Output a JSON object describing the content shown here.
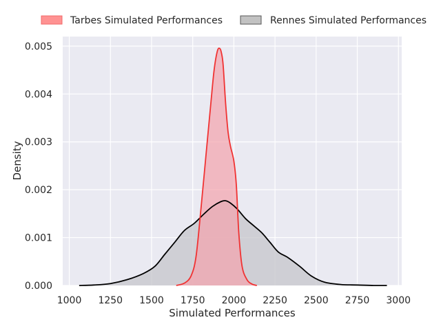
{
  "chart_data": {
    "type": "area",
    "title": "",
    "xlabel": "Simulated Performances",
    "ylabel": "Density",
    "xlim": [
      960,
      3020
    ],
    "ylim": [
      0,
      0.0052
    ],
    "xticks": [
      1000,
      1250,
      1500,
      1750,
      2000,
      2250,
      2500,
      2750,
      3000
    ],
    "yticks": [
      0.0,
      0.001,
      0.002,
      0.003,
      0.004,
      0.005
    ],
    "ytick_labels": [
      "0.000",
      "0.001",
      "0.002",
      "0.003",
      "0.004",
      "0.005"
    ],
    "grid": true,
    "legend_placement": "top",
    "series": [
      {
        "name": "Tarbes Simulated Performances",
        "line_color": "#f03232",
        "fill_color": "#f4a3ad",
        "x": [
          1650,
          1700,
          1740,
          1770,
          1800,
          1830,
          1860,
          1880,
          1900,
          1915,
          1925,
          1935,
          1950,
          1965,
          1980,
          2000,
          2015,
          2030,
          2050,
          2080,
          2110,
          2140
        ],
        "y": [
          0.0,
          5e-05,
          0.0002,
          0.0006,
          0.0016,
          0.0027,
          0.0038,
          0.0045,
          0.0049,
          0.00495,
          0.00485,
          0.0046,
          0.0038,
          0.0032,
          0.0029,
          0.0026,
          0.0021,
          0.0011,
          0.0004,
          0.00012,
          3e-05,
          0.0
        ]
      },
      {
        "name": "Rennes Simulated Performances",
        "line_color": "#000000",
        "fill_color": "#c6c6cb",
        "x": [
          1060,
          1150,
          1250,
          1350,
          1450,
          1520,
          1580,
          1640,
          1700,
          1760,
          1820,
          1870,
          1920,
          1950,
          1980,
          2020,
          2070,
          2120,
          2170,
          2220,
          2270,
          2330,
          2400,
          2470,
          2550,
          2650,
          2750,
          2850,
          2930
        ],
        "y": [
          0.0,
          1e-05,
          4e-05,
          0.00012,
          0.00025,
          0.0004,
          0.00065,
          0.0009,
          0.00115,
          0.0013,
          0.0015,
          0.00165,
          0.00175,
          0.00177,
          0.00172,
          0.0016,
          0.0014,
          0.00125,
          0.0011,
          0.0009,
          0.0007,
          0.00058,
          0.0004,
          0.0002,
          7e-05,
          2e-05,
          1e-05,
          0.0,
          0.0
        ]
      }
    ]
  }
}
